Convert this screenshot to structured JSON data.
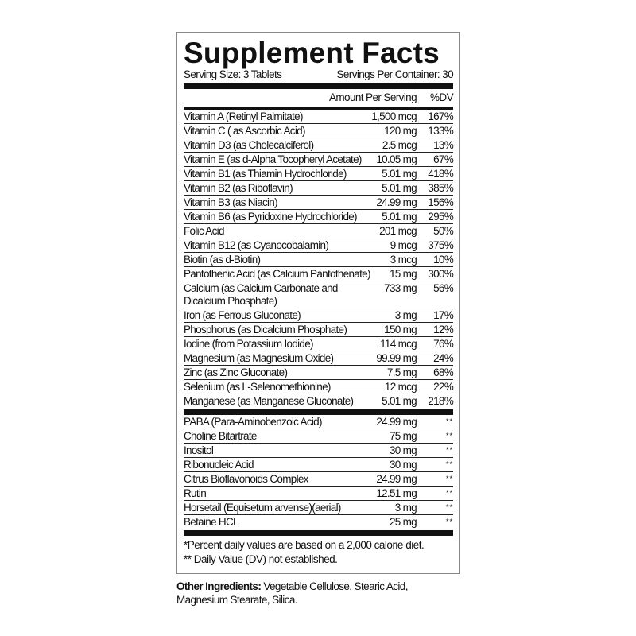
{
  "title": "Supplement Facts",
  "serving_size": "Serving Size: 3 Tablets",
  "servings_per_container": "Servings Per Container: 30",
  "header": {
    "amount": "Amount Per Serving",
    "dv": "%DV"
  },
  "nutrients": [
    {
      "name": "Vitamin A (Retinyl Palmitate)",
      "amount": "1,500 mcg",
      "dv": "167%"
    },
    {
      "name": "Vitamin C ( as Ascorbic Acid)",
      "amount": "120 mg",
      "dv": "133%"
    },
    {
      "name": "Vitamin D3 (as Cholecalciferol)",
      "amount": "2.5 mcg",
      "dv": "13%"
    },
    {
      "name": "Vitamin E (as d-Alpha Tocopheryl Acetate)",
      "amount": "10.05 mg",
      "dv": "67%"
    },
    {
      "name": "Vitamin B1 (as Thiamin Hydrochloride)",
      "amount": "5.01 mg",
      "dv": "418%"
    },
    {
      "name": "Vitamin B2 (as Riboflavin)",
      "amount": "5.01 mg",
      "dv": "385%"
    },
    {
      "name": "Vitamin B3 (as Niacin)",
      "amount": "24.99 mg",
      "dv": "156%"
    },
    {
      "name": "Vitamin B6 (as Pyridoxine Hydrochloride)",
      "amount": "5.01 mg",
      "dv": "295%"
    },
    {
      "name": "Folic Acid",
      "amount": "201 mcg",
      "dv": "50%"
    },
    {
      "name": "Vitamin B12 (as Cyanocobalamin)",
      "amount": "9 mcg",
      "dv": "375%"
    },
    {
      "name": "Biotin (as d-Biotin)",
      "amount": "3 mcg",
      "dv": "10%"
    },
    {
      "name": "Pantothenic Acid (as Calcium Pantothenate)",
      "amount": "15 mg",
      "dv": "300%"
    },
    {
      "name": "Calcium (as Calcium Carbonate and\nDicalcium Phosphate)",
      "amount": "733 mg",
      "dv": "56%"
    },
    {
      "name": "Iron (as Ferrous Gluconate)",
      "amount": "3 mg",
      "dv": "17%"
    },
    {
      "name": "Phosphorus (as Dicalcium Phosphate)",
      "amount": "150 mg",
      "dv": "12%"
    },
    {
      "name": "Iodine (from Potassium Iodide)",
      "amount": "114 mcg",
      "dv": "76%"
    },
    {
      "name": "Magnesium (as Magnesium Oxide)",
      "amount": "99.99 mg",
      "dv": "24%"
    },
    {
      "name": "Zinc (as Zinc Gluconate)",
      "amount": "7.5 mg",
      "dv": "68%"
    },
    {
      "name": "Selenium (as L-Selenomethionine)",
      "amount": "12 mcg",
      "dv": "22%"
    },
    {
      "name": "Manganese (as Manganese Gluconate)",
      "amount": "5.01 mg",
      "dv": "218%"
    }
  ],
  "other_nutrients": [
    {
      "name": "PABA (Para-Aminobenzoic Acid)",
      "amount": "24.99 mg",
      "dv": "**"
    },
    {
      "name": "Choline Bitartrate",
      "amount": "75 mg",
      "dv": "**"
    },
    {
      "name": "Inositol",
      "amount": "30 mg",
      "dv": "**"
    },
    {
      "name": "Ribonucleic Acid",
      "amount": "30 mg",
      "dv": "**"
    },
    {
      "name": "Citrus Bioflavonoids Complex",
      "amount": "24.99 mg",
      "dv": "**"
    },
    {
      "name": "Rutin",
      "amount": "12.51 mg",
      "dv": "**"
    },
    {
      "name": "Horsetail (Equisetum arvense)(aerial)",
      "amount": "3 mg",
      "dv": "**"
    },
    {
      "name": "Betaine HCL",
      "amount": "25 mg",
      "dv": "**"
    }
  ],
  "footnotes": [
    "*Percent daily values are based on a 2,000 calorie diet.",
    "** Daily Value (DV) not established."
  ],
  "other_ingredients": {
    "label": "Other Ingredients:",
    "text": " Vegetable Cellulose, Stearic Acid, Magnesium Stearate, Silica."
  }
}
